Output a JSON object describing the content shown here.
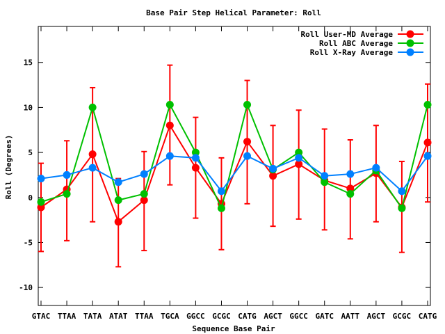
{
  "chart_data": {
    "type": "line",
    "title": "Base Pair Step Helical Parameter: Roll",
    "xlabel": "Sequence Base Pair",
    "ylabel": "Roll (Degrees)",
    "categories": [
      "GTAC",
      "TTAA",
      "TATA",
      "ATAT",
      "TTAA",
      "TGCA",
      "GGCC",
      "GCGC",
      "CATG",
      "AGCT",
      "GGCC",
      "GATC",
      "AATT",
      "AGCT",
      "GCGC",
      "CATG"
    ],
    "ylim": [
      -12,
      19
    ],
    "yticks": [
      -10,
      -5,
      0,
      5,
      10,
      15
    ],
    "ytick_labels": [
      "-10",
      "-5",
      "0",
      "5",
      "10",
      "15"
    ],
    "grid": false,
    "legend_position": "top-right",
    "series": [
      {
        "name": "Roll User-MD Average",
        "color": "#ff0000",
        "values": [
          -1.1,
          0.9,
          4.8,
          -2.7,
          -0.3,
          8.0,
          3.3,
          -0.7,
          6.2,
          2.4,
          3.7,
          1.9,
          1.0,
          2.7,
          -1.1,
          6.1
        ],
        "error_low": [
          -6.0,
          -4.8,
          -2.7,
          -7.7,
          -5.9,
          1.4,
          -2.3,
          -5.8,
          -0.7,
          -3.2,
          -2.4,
          -3.6,
          -4.6,
          -2.7,
          -6.1,
          -0.5
        ],
        "error_high": [
          3.8,
          6.3,
          12.2,
          2.1,
          5.1,
          14.7,
          8.9,
          4.4,
          13.0,
          8.0,
          9.7,
          7.6,
          6.4,
          8.0,
          4.0,
          12.6
        ]
      },
      {
        "name": "Roll ABC Average",
        "color": "#00c000",
        "values": [
          -0.5,
          0.4,
          10.0,
          -0.3,
          0.4,
          10.3,
          5.0,
          -1.2,
          10.3,
          3.1,
          5.0,
          1.7,
          0.4,
          3.0,
          -1.2,
          10.3
        ]
      },
      {
        "name": "Roll X-Ray Average",
        "color": "#0080ff",
        "values": [
          2.1,
          2.5,
          3.3,
          1.7,
          2.6,
          4.6,
          4.4,
          0.7,
          4.6,
          3.2,
          4.4,
          2.4,
          2.6,
          3.3,
          0.7,
          4.6
        ]
      }
    ]
  }
}
